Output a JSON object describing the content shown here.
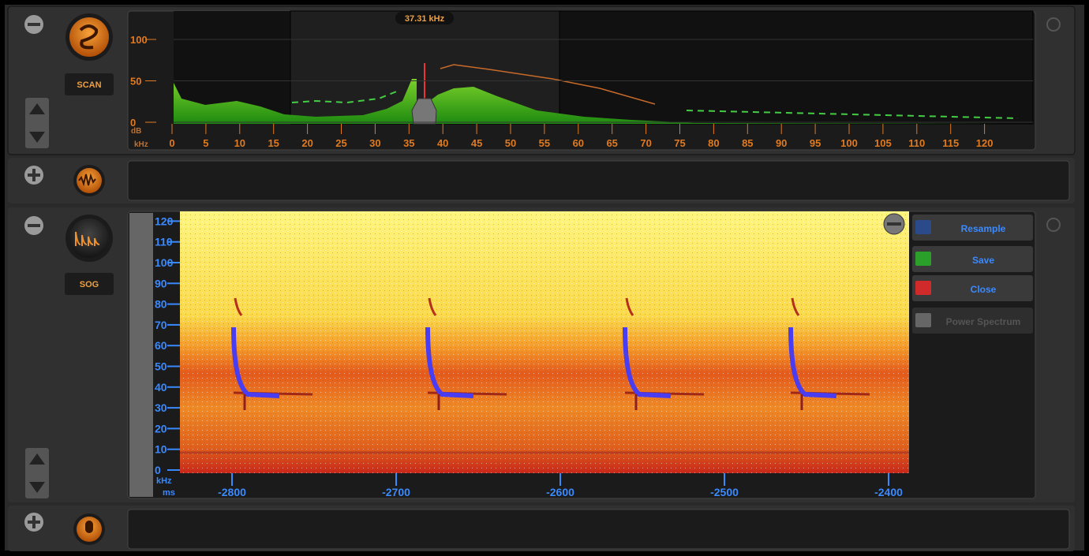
{
  "scan_panel": {
    "label": "SCAN",
    "cursor_label": "37.31 kHz",
    "y_label": "dB",
    "x_label": "kHz",
    "yticks": [
      100,
      50,
      0
    ],
    "xticks": [
      0,
      5,
      10,
      15,
      20,
      25,
      30,
      35,
      40,
      45,
      50,
      55,
      60,
      65,
      70,
      75,
      80,
      85,
      90,
      95,
      100,
      105,
      110,
      115,
      120
    ]
  },
  "sog_panel": {
    "label": "SOG",
    "y_label": "kHz",
    "x_label": "ms",
    "yticks": [
      0,
      10,
      20,
      30,
      40,
      50,
      60,
      70,
      80,
      90,
      100,
      110,
      120
    ],
    "xticks": [
      -2800,
      -2700,
      -2600,
      -2500,
      -2400
    ]
  },
  "tools": [
    "Resample",
    "Save",
    "Close",
    "Power Spectrum"
  ]
}
